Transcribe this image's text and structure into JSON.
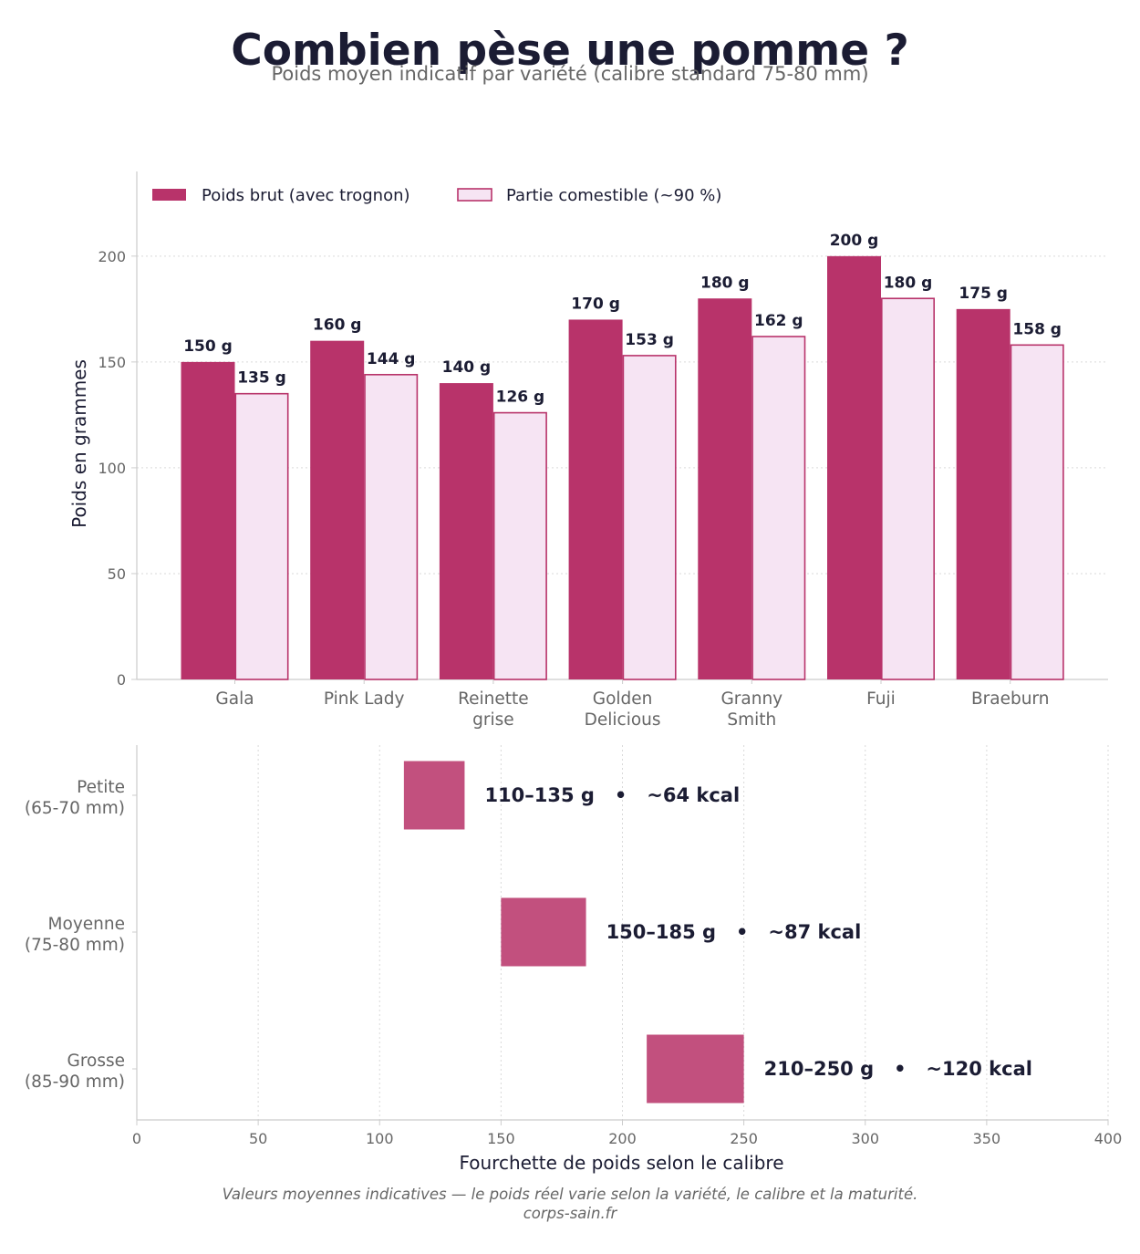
{
  "header": {
    "title": "Combien pèse une pomme ?",
    "subtitle": "Poids moyen indicatif par variété (calibre standard 75-80 mm)"
  },
  "footer": {
    "note": "Valeurs moyennes indicatives — le poids réel varie selon la variété, le calibre et la maturité.",
    "source": "corps-sain.fr"
  },
  "colors": {
    "primary": "#b8336a",
    "light_fill": "#f6e4f3",
    "range_fill": "#c2507e",
    "text_dark": "#1b1c33",
    "text_muted": "#666666",
    "axis": "#cccccc"
  },
  "chart_data": [
    {
      "type": "bar",
      "title": "",
      "xlabel": "",
      "ylabel": "Poids en grammes",
      "ylim": [
        0,
        240
      ],
      "yticks": [
        0,
        50,
        100,
        150,
        200
      ],
      "grid": "horizontal dotted",
      "legend_position": "top-left",
      "value_suffix": " g",
      "categories": [
        [
          "Gala"
        ],
        [
          "Pink Lady"
        ],
        [
          "Reinette",
          "grise"
        ],
        [
          "Golden",
          "Delicious"
        ],
        [
          "Granny",
          "Smith"
        ],
        [
          "Fuji"
        ],
        [
          "Braeburn"
        ]
      ],
      "series": [
        {
          "name": "Poids brut (avec trognon)",
          "values": [
            150,
            160,
            140,
            170,
            180,
            200,
            175
          ]
        },
        {
          "name": "Partie comestible (~90 %)",
          "values": [
            135,
            144,
            126,
            153,
            162,
            180,
            158
          ]
        }
      ]
    },
    {
      "type": "range-bar",
      "title": "",
      "xlabel": "Fourchette de poids selon le calibre",
      "ylabel": "",
      "xlim": [
        0,
        400
      ],
      "xticks": [
        0,
        50,
        100,
        150,
        200,
        250,
        300,
        350,
        400
      ],
      "grid": "vertical dotted",
      "categories": [
        [
          "Petite",
          "(65-70 mm)"
        ],
        [
          "Moyenne",
          "(75-80 mm)"
        ],
        [
          "Grosse",
          "(85-90 mm)"
        ]
      ],
      "ranges": [
        {
          "min": 110,
          "max": 135,
          "label": "110–135 g   •   ~64 kcal"
        },
        {
          "min": 150,
          "max": 185,
          "label": "150–185 g   •   ~87 kcal"
        },
        {
          "min": 210,
          "max": 250,
          "label": "210–250 g   •   ~120 kcal"
        }
      ]
    }
  ]
}
